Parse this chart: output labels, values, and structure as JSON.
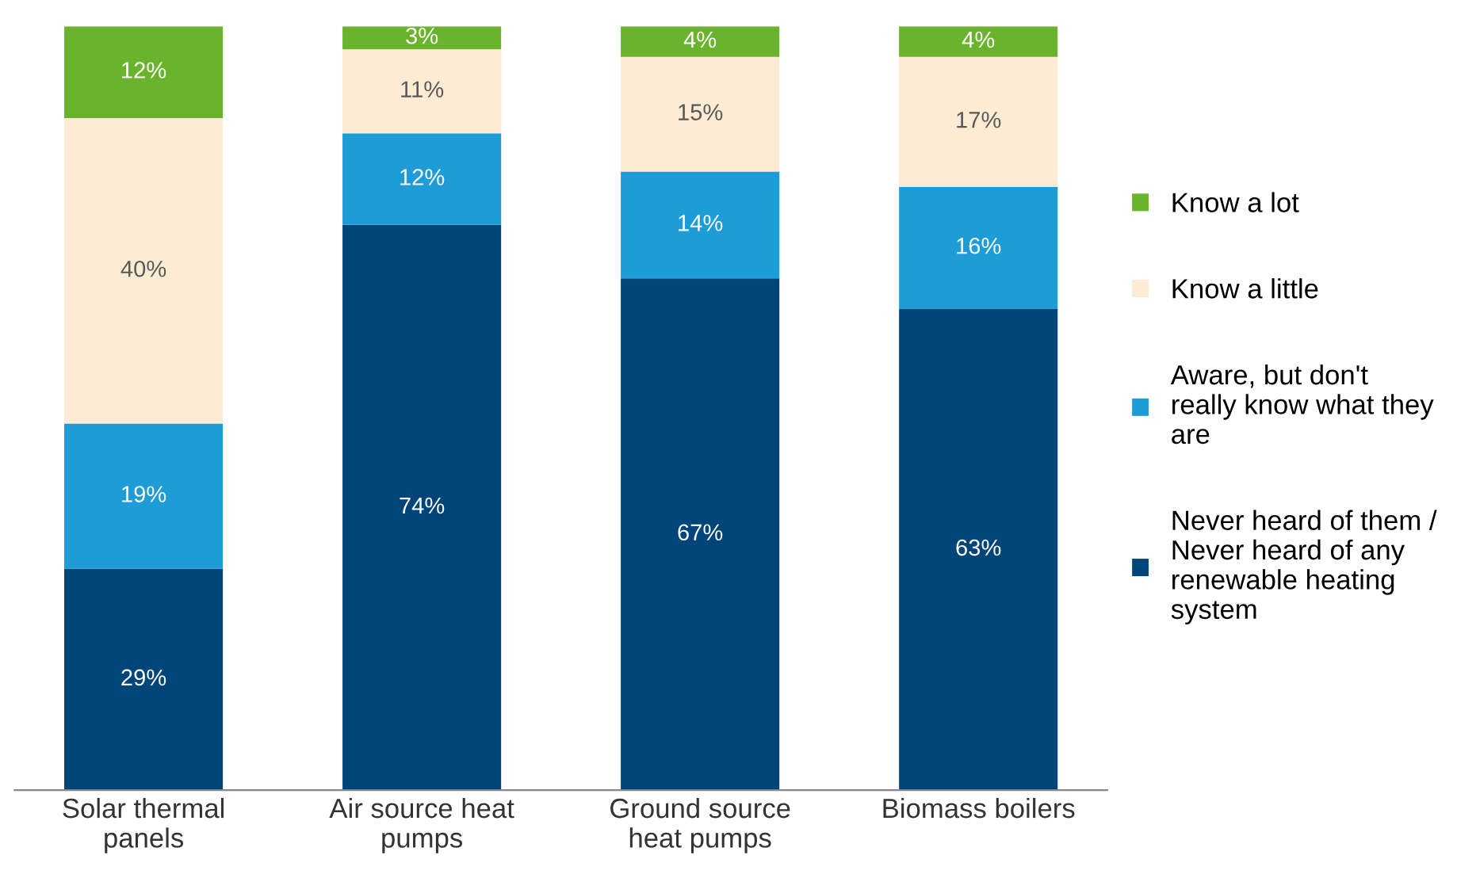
{
  "chart_data": {
    "type": "bar",
    "stacked": true,
    "legend": "right",
    "grid": false,
    "categories": [
      "Solar thermal\npanels",
      "Air source heat\npumps",
      "Ground source\nheat pumps",
      "Biomass boilers"
    ],
    "series": [
      {
        "name": "Never heard of them /\nNever heard of any\nrenewable heating\nsystem",
        "color": "#00457a",
        "values": [
          29,
          74,
          67,
          63
        ],
        "value_labels": [
          "29%",
          "74%",
          "67%",
          "63%"
        ]
      },
      {
        "name": "Aware, but don't\nreally know what they\nare",
        "color": "#1e9cd8",
        "values": [
          19,
          12,
          14,
          16
        ],
        "value_labels": [
          "19%",
          "12%",
          "14%",
          "16%"
        ]
      },
      {
        "name": "Know a little",
        "color": "#fdebd3",
        "values": [
          40,
          11,
          15,
          17
        ],
        "value_labels": [
          "40%",
          "11%",
          "15%",
          "17%"
        ]
      },
      {
        "name": "Know a lot",
        "color": "#6ab42d",
        "values": [
          12,
          3,
          4,
          4
        ],
        "value_labels": [
          "12%",
          "3%",
          "4%",
          "4%"
        ]
      }
    ]
  }
}
